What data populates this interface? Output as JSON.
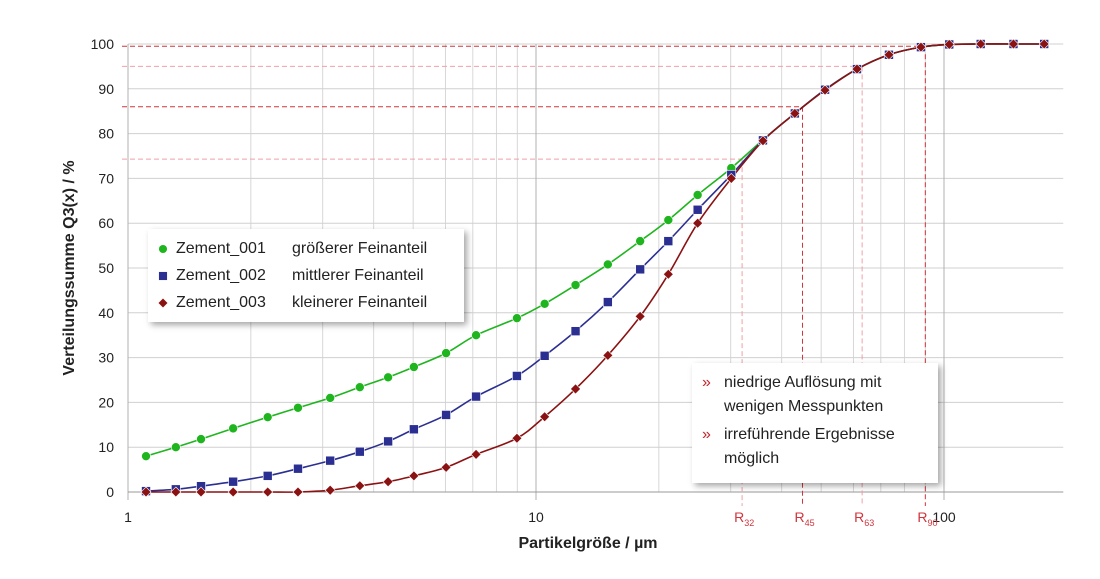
{
  "chart_data": {
    "type": "line",
    "x_label": "Partikelgröße / µm",
    "y_label": "Verteilungssumme Q3(x) / %",
    "log_x": true,
    "grid": true,
    "xlim": [
      1,
      196
    ],
    "xticks": [
      1,
      10,
      100
    ],
    "ylim": [
      0,
      100
    ],
    "yticks": [
      0,
      10,
      20,
      30,
      40,
      50,
      60,
      70,
      80,
      90,
      100
    ],
    "x": [
      1.107,
      1.31,
      1.51,
      1.81,
      2.2,
      2.61,
      3.13,
      3.7,
      4.34,
      5.02,
      6.02,
      7.13,
      8.98,
      10.5,
      12.5,
      15.0,
      18.0,
      21.1,
      24.9,
      30.1,
      36.0,
      43.1,
      51.1,
      61.2,
      73.3,
      87.8,
      103,
      123,
      148,
      176
    ],
    "series": [
      {
        "name": "Zement_001",
        "description": "größerer Feinanteil",
        "color": "#1fb51f",
        "marker": "circle",
        "values": [
          8,
          10,
          11.8,
          14.2,
          16.7,
          18.8,
          21,
          23.4,
          25.6,
          27.9,
          31,
          35,
          38.8,
          42,
          46.2,
          50.8,
          56,
          60.7,
          66.3,
          72.3,
          78.6,
          84.5,
          89.8,
          94.4,
          97.6,
          99.3,
          99.9,
          100,
          100,
          100
        ]
      },
      {
        "name": "Zement_002",
        "description": "mittlerer Feinanteil",
        "color": "#2b2f91",
        "marker": "square",
        "values": [
          0.2,
          0.6,
          1.3,
          2.3,
          3.6,
          5.2,
          7,
          9,
          11.3,
          14,
          17.2,
          21.3,
          25.9,
          30.4,
          35.9,
          42.4,
          49.7,
          56,
          63,
          70.8,
          78.5,
          84.5,
          89.8,
          94.4,
          97.6,
          99.3,
          99.9,
          100,
          100,
          100
        ]
      },
      {
        "name": "Zement_003",
        "description": "kleinerer Feinanteil",
        "color": "#8b1212",
        "marker": "diamond",
        "values": [
          0,
          0,
          0,
          0,
          0,
          0,
          0.4,
          1.4,
          2.3,
          3.6,
          5.5,
          8.4,
          12,
          16.8,
          23,
          30.5,
          39.2,
          48.6,
          60,
          70,
          78.4,
          84.5,
          89.7,
          94.4,
          97.6,
          99.3,
          99.9,
          100,
          100,
          100
        ]
      }
    ],
    "markers": [
      {
        "label": "R",
        "sub": "32",
        "x": 32,
        "y": 74.3,
        "color": "#f0a0a8"
      },
      {
        "label": "R",
        "sub": "45",
        "x": 45,
        "y": 86,
        "color": "#d0353d"
      },
      {
        "label": "R",
        "sub": "63",
        "x": 63,
        "y": 95,
        "color": "#f0a0a8"
      },
      {
        "label": "R",
        "sub": "90",
        "x": 90,
        "y": 99.5,
        "color": "#d0353d"
      }
    ],
    "annotation": {
      "bullet": "»",
      "items": [
        "niedrige Auflösung mit wenigen Messpunkten",
        "irreführende Ergebnisse möglich"
      ]
    }
  }
}
